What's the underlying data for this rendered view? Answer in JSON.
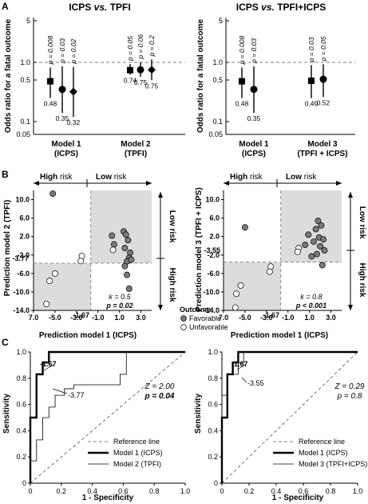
{
  "panels": {
    "A": {
      "letter": "A",
      "left": {
        "title_a": "ICPS",
        "title_vs": "vs.",
        "title_b": "TPFI",
        "ylabel": "Odds ratio for a fatal outcome",
        "yticks": [
          "5",
          "1.0",
          "0.5",
          "0.1",
          "0.05"
        ],
        "groups": [
          {
            "label_line1": "Model 1",
            "label_line2": "(ICPS)"
          },
          {
            "label_line1": "Model 2",
            "label_line2": "(TPFI)"
          }
        ]
      },
      "right": {
        "title_a": "ICPS",
        "title_vs": "vs.",
        "title_b": "TPFI+ICPS",
        "ylabel": "Odds ratio for a fatal outcome",
        "yticks": [
          "5",
          "1.0",
          "0.5",
          "0.1",
          "0.05"
        ],
        "groups": [
          {
            "label_line1": "Model 1",
            "label_line2": "(ICPS)"
          },
          {
            "label_line1": "Model 3",
            "label_line2": "(TPFI + ICPS)"
          }
        ]
      }
    },
    "B": {
      "letter": "B",
      "left": {
        "ylabel": "Prediction model 2 (TPFI)",
        "xlabel": "Prediction model 1 (ICPS)",
        "high_risk_top": "High",
        "risk_word": "risk",
        "low_risk_top": "Low",
        "low_risk_side": "Low risk",
        "high_risk_side": "High risk",
        "xticks": [
          "7.0",
          "-5.0",
          "-3.0",
          "-1.0",
          "1.0",
          "3.0"
        ],
        "yticks": [
          "10.0",
          "6.0",
          "2.0",
          "-2.0",
          "-6.0",
          "-10.0",
          "-14.0"
        ],
        "cut_x": "-1.67",
        "cut_y": "-3.77",
        "kappa_label": "k = 0.5",
        "p_label": "p = 0.02",
        "legend_title": "Outcome",
        "legend_items": [
          "Favorable",
          "Unfavorable"
        ]
      },
      "right": {
        "ylabel": "Prediction model 3 (TPFI + ICPS)",
        "xlabel": "Prediction model 1 (ICPS)",
        "high_risk_top": "High",
        "risk_word": "risk",
        "low_risk_top": "Low",
        "low_risk_side": "Low risk",
        "high_risk_side": "High risk",
        "xticks": [
          "7.0",
          "-5.0",
          "-3.0",
          "-1.0",
          "1.0",
          "3.0"
        ],
        "yticks": [
          "10.0",
          "6.0",
          "2.0",
          "-2.0",
          "-6.0",
          "-10.0",
          "-14.0"
        ],
        "cut_x": "-1.67",
        "cut_y": "-3.55",
        "kappa_label": "k = 0.8",
        "p_label": "p < 0.001"
      }
    },
    "C": {
      "letter": "C",
      "left": {
        "ylabel": "Sensitivity",
        "xlabel": "1 - Specificity",
        "ticks": [
          "0",
          "0.2",
          "0.4",
          "0.6",
          "0.8",
          "1.0"
        ],
        "z_label": "Z = 2.00",
        "p_label": "p = 0.04",
        "annot1": "-1.67",
        "annot2": "-3.77",
        "legend": [
          "Reference line",
          "Model 1 (ICPS)",
          "Model 2 (TPFI)"
        ]
      },
      "right": {
        "ylabel": "Sensitivity",
        "xlabel": "1 - Specificity",
        "ticks": [
          "0",
          "0.2",
          "0.4",
          "0.6",
          "0.8",
          "1.0"
        ],
        "z_label": "Z = 0.29",
        "p_label": "p = 0.8",
        "annot1": "-1.67",
        "annot2": "-3.55",
        "legend": [
          "Reference line",
          "Model 1 (ICPS)",
          "Model 3 (TPFI+ICPS)"
        ]
      }
    }
  },
  "chart_data": [
    {
      "type": "scatter",
      "panel": "A-left",
      "yscale": "log",
      "ylim": [
        0.05,
        5
      ],
      "reference_y": 1.0,
      "series": [
        {
          "group": "Model 1 (ICPS)",
          "marker": "square",
          "or": 0.48,
          "ci": [
            0.25,
            0.82
          ],
          "p": "p = 0.008"
        },
        {
          "group": "Model 1 (ICPS)",
          "marker": "circle",
          "or": 0.35,
          "ci": [
            0.14,
            0.86
          ],
          "p": "p = 0.03"
        },
        {
          "group": "Model 1 (ICPS)",
          "marker": "diamond",
          "or": 0.32,
          "ci": [
            0.12,
            0.84
          ],
          "p": "p = 0.02"
        },
        {
          "group": "Model 2 (TPFI)",
          "marker": "square",
          "or": 0.74,
          "ci": [
            0.62,
            0.94
          ],
          "p": "p = 0.05"
        },
        {
          "group": "Model 2 (TPFI)",
          "marker": "circle",
          "or": 0.75,
          "ci": [
            0.57,
            1.01
          ],
          "p": "p = 0.06"
        },
        {
          "group": "Model 2 (TPFI)",
          "marker": "diamond",
          "or": 0.75,
          "ci": [
            0.5,
            1.12
          ],
          "p": "p = 0.2"
        }
      ],
      "value_labels": [
        "0.48",
        "0.35",
        "0.32",
        "0.74",
        "0.75",
        "0.75"
      ]
    },
    {
      "type": "scatter",
      "panel": "A-right",
      "yscale": "log",
      "ylim": [
        0.05,
        5
      ],
      "reference_y": 1.0,
      "series": [
        {
          "group": "Model 1 (ICPS)",
          "marker": "square",
          "or": 0.48,
          "ci": [
            0.25,
            0.82
          ],
          "p": "p = 0.008"
        },
        {
          "group": "Model 1 (ICPS)",
          "marker": "circle",
          "or": 0.35,
          "ci": [
            0.14,
            0.86
          ],
          "p": "p = 0.03"
        },
        {
          "group": "Model 3 (TPFI + ICPS)",
          "marker": "square",
          "or": 0.49,
          "ci": [
            0.25,
            0.9
          ],
          "p": "p = 0.03"
        },
        {
          "group": "Model 3 (TPFI + ICPS)",
          "marker": "circle",
          "or": 0.52,
          "ci": [
            0.26,
            0.93
          ],
          "p": "p = 0.05"
        }
      ],
      "value_labels": [
        "0.48",
        "0.35",
        "0.49",
        "0.52"
      ]
    },
    {
      "type": "scatter",
      "panel": "B-left",
      "xlim": [
        7.0,
        -9.0
      ],
      "x_axis_note": "x axis runs 7.0, -5.0 ... 3.0 (first tick printed as 7.0)",
      "xlim_data": [
        -7.0,
        4.0
      ],
      "ylim": [
        -14,
        12
      ],
      "cut_x": -1.67,
      "cut_y": -3.77,
      "points": [
        {
          "x": -5.2,
          "y": 11.3,
          "outcome": "Favorable"
        },
        {
          "x": 1.4,
          "y": 3.1,
          "outcome": "Favorable"
        },
        {
          "x": 1.6,
          "y": 2.4,
          "outcome": "Favorable"
        },
        {
          "x": 1.8,
          "y": 1.2,
          "outcome": "Favorable"
        },
        {
          "x": 1.5,
          "y": -0.5,
          "outcome": "Favorable"
        },
        {
          "x": 2.0,
          "y": -1.5,
          "outcome": "Favorable"
        },
        {
          "x": 1.9,
          "y": -2.6,
          "outcome": "Favorable"
        },
        {
          "x": 1.7,
          "y": -3.4,
          "outcome": "Favorable"
        },
        {
          "x": 1.5,
          "y": -4.4,
          "outcome": "Favorable"
        },
        {
          "x": 1.7,
          "y": -6.3,
          "outcome": "Favorable"
        },
        {
          "x": 1.9,
          "y": -9.3,
          "outcome": "Favorable"
        },
        {
          "x": 0.5,
          "y": 0.3,
          "outcome": "Favorable"
        },
        {
          "x": 0.3,
          "y": 2.2,
          "outcome": "Favorable"
        },
        {
          "x": 2.1,
          "y": -3.0,
          "outcome": "Favorable"
        },
        {
          "x": 0.4,
          "y": -0.9,
          "outcome": "Unfavorable"
        },
        {
          "x": -2.5,
          "y": -2.2,
          "outcome": "Unfavorable"
        },
        {
          "x": -2.6,
          "y": -3.3,
          "outcome": "Unfavorable"
        },
        {
          "x": -5.0,
          "y": -6.0,
          "outcome": "Unfavorable"
        },
        {
          "x": -5.5,
          "y": -7.6,
          "outcome": "Unfavorable"
        },
        {
          "x": -5.8,
          "y": -12.6,
          "outcome": "Unfavorable"
        }
      ],
      "kappa": 0.5,
      "p": 0.02
    },
    {
      "type": "scatter",
      "panel": "B-right",
      "xlim_data": [
        -7.0,
        4.0
      ],
      "ylim": [
        -14,
        12
      ],
      "cut_x": -1.67,
      "cut_y": -3.55,
      "points": [
        {
          "x": -5.0,
          "y": 4.0,
          "outcome": "Favorable"
        },
        {
          "x": 1.8,
          "y": 5.4,
          "outcome": "Favorable"
        },
        {
          "x": 2.1,
          "y": 4.4,
          "outcome": "Favorable"
        },
        {
          "x": 1.6,
          "y": 3.6,
          "outcome": "Favorable"
        },
        {
          "x": 0.9,
          "y": 2.4,
          "outcome": "Favorable"
        },
        {
          "x": 1.9,
          "y": 1.8,
          "outcome": "Favorable"
        },
        {
          "x": 2.3,
          "y": 1.4,
          "outcome": "Favorable"
        },
        {
          "x": 1.4,
          "y": 0.9,
          "outcome": "Favorable"
        },
        {
          "x": 0.6,
          "y": 0.2,
          "outcome": "Favorable"
        },
        {
          "x": 2.0,
          "y": -0.1,
          "outcome": "Favorable"
        },
        {
          "x": 2.4,
          "y": -1.0,
          "outcome": "Favorable"
        },
        {
          "x": 1.7,
          "y": -1.8,
          "outcome": "Favorable"
        },
        {
          "x": 1.2,
          "y": -2.3,
          "outcome": "Favorable"
        },
        {
          "x": 2.2,
          "y": -4.2,
          "outcome": "Favorable"
        },
        {
          "x": 0.0,
          "y": -0.5,
          "outcome": "Unfavorable"
        },
        {
          "x": -0.1,
          "y": -1.3,
          "outcome": "Unfavorable"
        },
        {
          "x": -2.6,
          "y": -4.5,
          "outcome": "Unfavorable"
        },
        {
          "x": -2.7,
          "y": -5.6,
          "outcome": "Unfavorable"
        },
        {
          "x": -5.4,
          "y": -8.6,
          "outcome": "Unfavorable"
        },
        {
          "x": -5.8,
          "y": -10.4,
          "outcome": "Unfavorable"
        },
        {
          "x": -5.9,
          "y": -13.4,
          "outcome": "Unfavorable"
        }
      ],
      "kappa": 0.8,
      "p": "< 0.001"
    },
    {
      "type": "line",
      "panel": "C-left",
      "xlim": [
        0,
        1
      ],
      "ylim": [
        0,
        1
      ],
      "series": [
        {
          "name": "Reference line",
          "points": [
            [
              0,
              0
            ],
            [
              1,
              1
            ]
          ]
        },
        {
          "name": "Model 1 (ICPS)",
          "points": [
            [
              0,
              0
            ],
            [
              0,
              0.5
            ],
            [
              0.04,
              0.5
            ],
            [
              0.04,
              0.83
            ],
            [
              0.08,
              0.83
            ],
            [
              0.08,
              0.92
            ],
            [
              0.12,
              0.92
            ],
            [
              0.12,
              1.0
            ],
            [
              1.0,
              1.0
            ]
          ]
        },
        {
          "name": "Model 2 (TPFI)",
          "points": [
            [
              0,
              0
            ],
            [
              0,
              0.17
            ],
            [
              0.04,
              0.17
            ],
            [
              0.04,
              0.33
            ],
            [
              0.08,
              0.33
            ],
            [
              0.08,
              0.5
            ],
            [
              0.12,
              0.5
            ],
            [
              0.12,
              0.58
            ],
            [
              0.16,
              0.58
            ],
            [
              0.16,
              0.67
            ],
            [
              0.22,
              0.67
            ],
            [
              0.22,
              0.72
            ],
            [
              0.28,
              0.72
            ],
            [
              0.28,
              0.75
            ],
            [
              0.58,
              0.75
            ],
            [
              0.58,
              0.83
            ],
            [
              0.62,
              0.83
            ],
            [
              0.62,
              1.0
            ],
            [
              1.0,
              1.0
            ]
          ]
        }
      ],
      "z": 2.0,
      "p": 0.04
    },
    {
      "type": "line",
      "panel": "C-right",
      "xlim": [
        0,
        1
      ],
      "ylim": [
        0,
        1
      ],
      "series": [
        {
          "name": "Reference line",
          "points": [
            [
              0,
              0
            ],
            [
              1,
              1
            ]
          ]
        },
        {
          "name": "Model 1 (ICPS)",
          "points": [
            [
              0,
              0
            ],
            [
              0,
              0.5
            ],
            [
              0.04,
              0.5
            ],
            [
              0.04,
              0.83
            ],
            [
              0.08,
              0.83
            ],
            [
              0.08,
              0.92
            ],
            [
              0.12,
              0.92
            ],
            [
              0.12,
              1.0
            ],
            [
              1.0,
              1.0
            ]
          ]
        },
        {
          "name": "Model 3 (TPFI+ICPS)",
          "points": [
            [
              0,
              0
            ],
            [
              0,
              0.67
            ],
            [
              0.04,
              0.67
            ],
            [
              0.04,
              0.83
            ],
            [
              0.12,
              0.83
            ],
            [
              0.12,
              0.92
            ],
            [
              0.16,
              0.92
            ],
            [
              0.16,
              1.0
            ],
            [
              1.0,
              1.0
            ]
          ]
        }
      ],
      "z": 0.29,
      "p": 0.8
    }
  ]
}
